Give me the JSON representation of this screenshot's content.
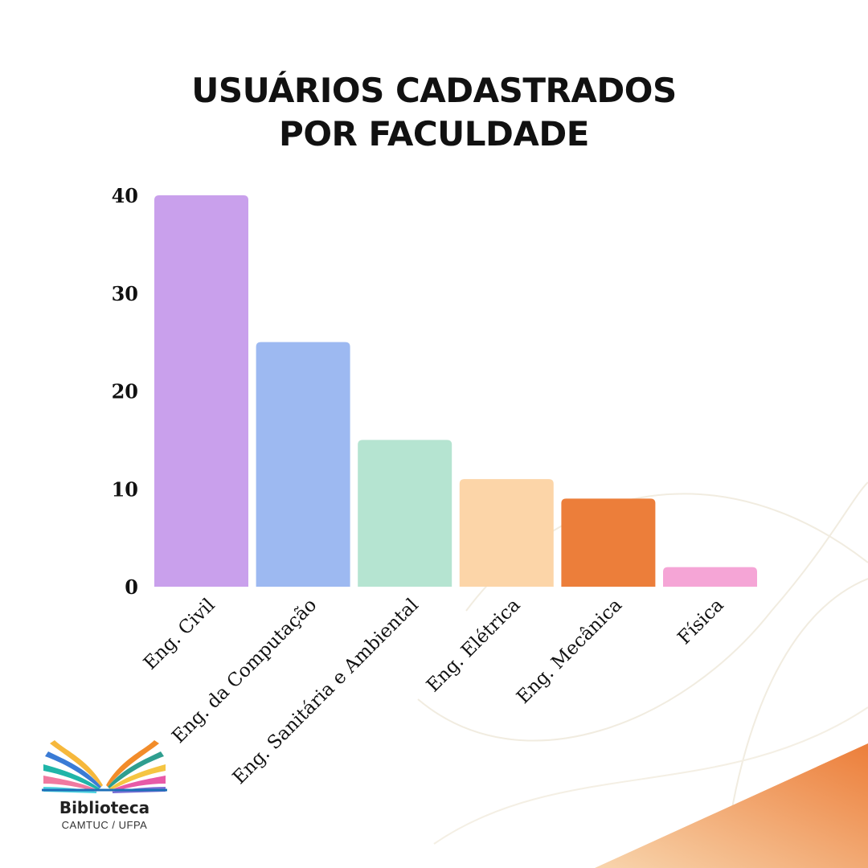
{
  "chart_data": {
    "type": "bar",
    "title": [
      "USUÁRIOS CADASTRADOS",
      "POR FACULDADE"
    ],
    "categories": [
      "Eng. Civil",
      "Eng. da Computação",
      "Eng. Sanitária e Ambiental",
      "Eng. Elétrica",
      "Eng. Mecânica",
      "Física"
    ],
    "values": [
      40,
      25,
      15,
      11,
      9,
      2
    ],
    "colors": [
      "#c9a0ec",
      "#9db9f1",
      "#b5e4d1",
      "#fcd5a8",
      "#ec7e3a",
      "#f5a5d6"
    ],
    "ylim": [
      0,
      40
    ],
    "yticks": [
      0,
      10,
      20,
      30,
      40
    ],
    "xlabel": "",
    "ylabel": "",
    "grid": false
  },
  "logo": {
    "name": "Biblioteca",
    "subtitle": "CAMTUC / UFPA"
  },
  "decor": {
    "accent": "#ec7e3a",
    "accent_light": "#f6c89a"
  }
}
